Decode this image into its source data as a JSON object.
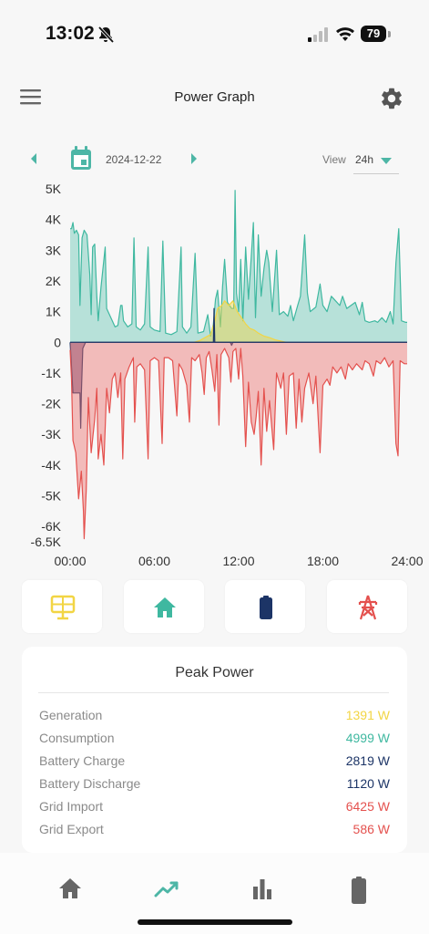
{
  "status_bar": {
    "time": "13:02",
    "battery_level": "79"
  },
  "header": {
    "title": "Power Graph"
  },
  "date_nav": {
    "date": "2024-12-22",
    "view_label": "View",
    "view_value": "24h"
  },
  "colors": {
    "accent": "#4db6a6",
    "generation": "#f2d544",
    "consumption": "#3fb8a0",
    "battery": "#1c3466",
    "grid": "#e4514e"
  },
  "chart_data": {
    "type": "area",
    "y_ticks": [
      "5K",
      "4K",
      "3K",
      "2K",
      "1K",
      "0",
      "-1K",
      "-2K",
      "-3K",
      "-4K",
      "-5K",
      "-6K",
      "-6.5K"
    ],
    "ylim": [
      -6500,
      5000
    ],
    "x_ticks": [
      "00:00",
      "06:00",
      "12:00",
      "18:00",
      "24:00"
    ],
    "xlim": [
      "00:00",
      "24:00"
    ],
    "grid": false,
    "series": [
      {
        "color": "#3fb8a0",
        "points": [
          [
            0,
            3700
          ],
          [
            0.1,
            3700
          ],
          [
            0.2,
            3900
          ],
          [
            0.3,
            3550
          ],
          [
            0.45,
            3650
          ],
          [
            0.6,
            3500
          ],
          [
            0.7,
            1200
          ],
          [
            0.85,
            3400
          ],
          [
            1.0,
            3650
          ],
          [
            1.2,
            3500
          ],
          [
            1.4,
            2200
          ],
          [
            1.5,
            900
          ],
          [
            1.6,
            3100
          ],
          [
            1.75,
            3200
          ],
          [
            1.9,
            1500
          ],
          [
            2.0,
            700
          ],
          [
            2.2,
            1800
          ],
          [
            2.5,
            3100
          ],
          [
            2.6,
            1100
          ],
          [
            3.0,
            700
          ],
          [
            3.2,
            500
          ],
          [
            3.4,
            550
          ],
          [
            3.6,
            1200
          ],
          [
            3.7,
            1200
          ],
          [
            3.8,
            700
          ],
          [
            4.1,
            500
          ],
          [
            4.4,
            600
          ],
          [
            4.55,
            3400
          ],
          [
            4.7,
            500
          ],
          [
            5.0,
            400
          ],
          [
            5.3,
            600
          ],
          [
            5.55,
            3100
          ],
          [
            5.7,
            500
          ],
          [
            6.0,
            400
          ],
          [
            6.4,
            350
          ],
          [
            6.6,
            3300
          ],
          [
            6.8,
            300
          ],
          [
            7.2,
            250
          ],
          [
            7.6,
            350
          ],
          [
            7.9,
            3100
          ],
          [
            8.0,
            500
          ],
          [
            8.3,
            300
          ],
          [
            8.6,
            500
          ],
          [
            8.9,
            2900
          ],
          [
            9.1,
            300
          ],
          [
            9.5,
            350
          ],
          [
            9.8,
            900
          ],
          [
            10.0,
            200
          ],
          [
            10.2,
            600
          ],
          [
            10.35,
            1400
          ],
          [
            10.5,
            1700
          ],
          [
            10.7,
            500
          ],
          [
            10.85,
            1800
          ],
          [
            11.0,
            2700
          ],
          [
            11.2,
            1300
          ],
          [
            11.5,
            1100
          ],
          [
            11.65,
            1100
          ],
          [
            11.75,
            4950
          ],
          [
            11.85,
            1600
          ],
          [
            12.0,
            1000
          ],
          [
            12.15,
            2700
          ],
          [
            12.3,
            700
          ],
          [
            12.5,
            3100
          ],
          [
            12.7,
            1400
          ],
          [
            12.9,
            2800
          ],
          [
            13.05,
            3900
          ],
          [
            13.2,
            800
          ],
          [
            13.4,
            3500
          ],
          [
            13.6,
            1500
          ],
          [
            13.8,
            2400
          ],
          [
            14.0,
            3000
          ],
          [
            14.15,
            2600
          ],
          [
            14.4,
            1000
          ],
          [
            14.7,
            3000
          ],
          [
            14.9,
            900
          ],
          [
            15.2,
            1000
          ],
          [
            15.5,
            850
          ],
          [
            15.7,
            1200
          ],
          [
            15.9,
            700
          ],
          [
            16.2,
            1200
          ],
          [
            16.4,
            1500
          ],
          [
            16.7,
            3500
          ],
          [
            16.9,
            1600
          ],
          [
            17.1,
            1000
          ],
          [
            17.5,
            1150
          ],
          [
            17.8,
            1900
          ],
          [
            18.0,
            1200
          ],
          [
            18.3,
            1000
          ],
          [
            18.6,
            1500
          ],
          [
            18.9,
            1350
          ],
          [
            19.2,
            1200
          ],
          [
            19.4,
            1500
          ],
          [
            19.7,
            1100
          ],
          [
            20.0,
            1200
          ],
          [
            20.3,
            1300
          ],
          [
            20.6,
            900
          ],
          [
            20.8,
            1300
          ],
          [
            21.0,
            700
          ],
          [
            21.3,
            650
          ],
          [
            21.7,
            700
          ],
          [
            21.9,
            650
          ],
          [
            22.2,
            800
          ],
          [
            22.5,
            650
          ],
          [
            22.8,
            1000
          ],
          [
            23.0,
            600
          ],
          [
            23.2,
            2600
          ],
          [
            23.4,
            3700
          ],
          [
            23.6,
            700
          ],
          [
            23.9,
            650
          ],
          [
            24,
            650
          ]
        ]
      },
      {
        "color": "#f2d544",
        "points": [
          [
            8.8,
            0
          ],
          [
            9.2,
            50
          ],
          [
            9.6,
            150
          ],
          [
            10.0,
            250
          ],
          [
            10.3,
            700
          ],
          [
            10.5,
            1100
          ],
          [
            10.8,
            1200
          ],
          [
            11.0,
            1350
          ],
          [
            11.3,
            1200
          ],
          [
            11.6,
            1350
          ],
          [
            11.9,
            1000
          ],
          [
            12.2,
            800
          ],
          [
            12.5,
            600
          ],
          [
            12.8,
            450
          ],
          [
            13.1,
            400
          ],
          [
            13.4,
            300
          ],
          [
            13.8,
            200
          ],
          [
            14.2,
            150
          ],
          [
            14.6,
            80
          ],
          [
            15.0,
            40
          ],
          [
            15.4,
            0
          ]
        ]
      },
      {
        "color": "#1c3466",
        "points": [
          [
            0,
            0
          ],
          [
            0.2,
            -1650
          ],
          [
            0.7,
            -1650
          ],
          [
            0.75,
            -2800
          ],
          [
            0.8,
            -1700
          ],
          [
            0.9,
            -200
          ],
          [
            1.1,
            0
          ],
          [
            9.0,
            0
          ],
          [
            10.0,
            0
          ],
          [
            10.2,
            0
          ],
          [
            10.25,
            1100
          ],
          [
            10.3,
            0
          ],
          [
            10.8,
            0
          ],
          [
            11.4,
            0
          ],
          [
            11.5,
            -100
          ],
          [
            11.6,
            0
          ],
          [
            24,
            0
          ]
        ]
      },
      {
        "color": "#e4514e",
        "points": [
          [
            0,
            -250
          ],
          [
            0.1,
            -1200
          ],
          [
            0.2,
            -3200
          ],
          [
            0.4,
            -3600
          ],
          [
            0.6,
            -5100
          ],
          [
            0.8,
            -4200
          ],
          [
            0.95,
            -5500
          ],
          [
            1.0,
            -6400
          ],
          [
            1.15,
            -4800
          ],
          [
            1.3,
            -1800
          ],
          [
            1.5,
            -3600
          ],
          [
            1.75,
            -2500
          ],
          [
            1.9,
            -1500
          ],
          [
            2.0,
            -3800
          ],
          [
            2.2,
            -3000
          ],
          [
            2.4,
            -4000
          ],
          [
            2.6,
            -1500
          ],
          [
            2.8,
            -2300
          ],
          [
            3.0,
            -1200
          ],
          [
            3.2,
            -1000
          ],
          [
            3.4,
            -1800
          ],
          [
            3.6,
            -1000
          ],
          [
            3.75,
            -3800
          ],
          [
            3.9,
            -1200
          ],
          [
            4.2,
            -800
          ],
          [
            4.5,
            -500
          ],
          [
            4.6,
            -2600
          ],
          [
            4.75,
            -800
          ],
          [
            5.0,
            -700
          ],
          [
            5.3,
            -900
          ],
          [
            5.55,
            -3800
          ],
          [
            5.7,
            -600
          ],
          [
            6.0,
            -500
          ],
          [
            6.3,
            -600
          ],
          [
            6.55,
            -3300
          ],
          [
            6.7,
            -500
          ],
          [
            7.0,
            -500
          ],
          [
            7.3,
            -600
          ],
          [
            7.6,
            -2400
          ],
          [
            7.75,
            -700
          ],
          [
            8.0,
            -900
          ],
          [
            8.3,
            -1400
          ],
          [
            8.5,
            -2600
          ],
          [
            8.65,
            -500
          ],
          [
            8.9,
            -600
          ],
          [
            9.2,
            -400
          ],
          [
            9.4,
            -1000
          ],
          [
            9.55,
            -1700
          ],
          [
            9.7,
            -500
          ],
          [
            9.9,
            -300
          ],
          [
            10.1,
            -900
          ],
          [
            10.3,
            -1600
          ],
          [
            10.45,
            -400
          ],
          [
            10.6,
            -2700
          ],
          [
            10.75,
            -400
          ],
          [
            11.0,
            -200
          ],
          [
            11.3,
            -500
          ],
          [
            11.45,
            -1300
          ],
          [
            11.6,
            -300
          ],
          [
            11.8,
            -200
          ],
          [
            12.0,
            -1200
          ],
          [
            12.15,
            -200
          ],
          [
            12.3,
            -1100
          ],
          [
            12.5,
            -3400
          ],
          [
            12.7,
            -1300
          ],
          [
            12.9,
            -2600
          ],
          [
            13.1,
            -3000
          ],
          [
            13.25,
            -2400
          ],
          [
            13.4,
            -1600
          ],
          [
            13.6,
            -4000
          ],
          [
            13.8,
            -1500
          ],
          [
            14.0,
            -2900
          ],
          [
            14.2,
            -1900
          ],
          [
            14.5,
            -3500
          ],
          [
            14.7,
            -1000
          ],
          [
            15.0,
            -1500
          ],
          [
            15.2,
            -1000
          ],
          [
            15.4,
            -3000
          ],
          [
            15.6,
            -1100
          ],
          [
            15.9,
            -1000
          ],
          [
            16.1,
            -2800
          ],
          [
            16.3,
            -1200
          ],
          [
            16.5,
            -2600
          ],
          [
            16.7,
            -1500
          ],
          [
            17.0,
            -1000
          ],
          [
            17.3,
            -2000
          ],
          [
            17.5,
            -1100
          ],
          [
            17.8,
            -3600
          ],
          [
            18.0,
            -1400
          ],
          [
            18.3,
            -1200
          ],
          [
            18.5,
            -1400
          ],
          [
            18.7,
            -800
          ],
          [
            19.0,
            -1000
          ],
          [
            19.3,
            -800
          ],
          [
            19.6,
            -1200
          ],
          [
            19.8,
            -700
          ],
          [
            20.1,
            -900
          ],
          [
            20.4,
            -700
          ],
          [
            20.8,
            -900
          ],
          [
            21.0,
            -600
          ],
          [
            21.3,
            -700
          ],
          [
            21.6,
            -1100
          ],
          [
            21.8,
            -600
          ],
          [
            22.1,
            -700
          ],
          [
            22.4,
            -500
          ],
          [
            22.7,
            -800
          ],
          [
            23.0,
            -600
          ],
          [
            23.2,
            -3300
          ],
          [
            23.35,
            -3700
          ],
          [
            23.5,
            -600
          ],
          [
            23.8,
            -700
          ],
          [
            24,
            -700
          ]
        ]
      }
    ]
  },
  "mode_buttons": [
    {
      "icon": "solar-panel-icon"
    },
    {
      "icon": "home-icon"
    },
    {
      "icon": "battery-icon"
    },
    {
      "icon": "power-pylon-icon"
    }
  ],
  "peak_power": {
    "title": "Peak Power",
    "rows": [
      {
        "label": "Generation",
        "value": "1391",
        "unit": "W",
        "color": "#f2d544"
      },
      {
        "label": "Consumption",
        "value": "4999",
        "unit": "W",
        "color": "#3fb8a0"
      },
      {
        "label": "Battery Charge",
        "value": "2819",
        "unit": "W",
        "color": "#1c3466"
      },
      {
        "label": "Battery Discharge",
        "value": "1120",
        "unit": "W",
        "color": "#1c3466"
      },
      {
        "label": "Grid Import",
        "value": "6425",
        "unit": "W",
        "color": "#e4514e"
      },
      {
        "label": "Grid Export",
        "value": "586",
        "unit": "W",
        "color": "#e4514e"
      }
    ]
  },
  "tab_bar": [
    {
      "icon": "home-icon"
    },
    {
      "icon": "trend-line-icon",
      "active": true
    },
    {
      "icon": "bar-chart-icon"
    },
    {
      "icon": "battery-icon"
    }
  ]
}
